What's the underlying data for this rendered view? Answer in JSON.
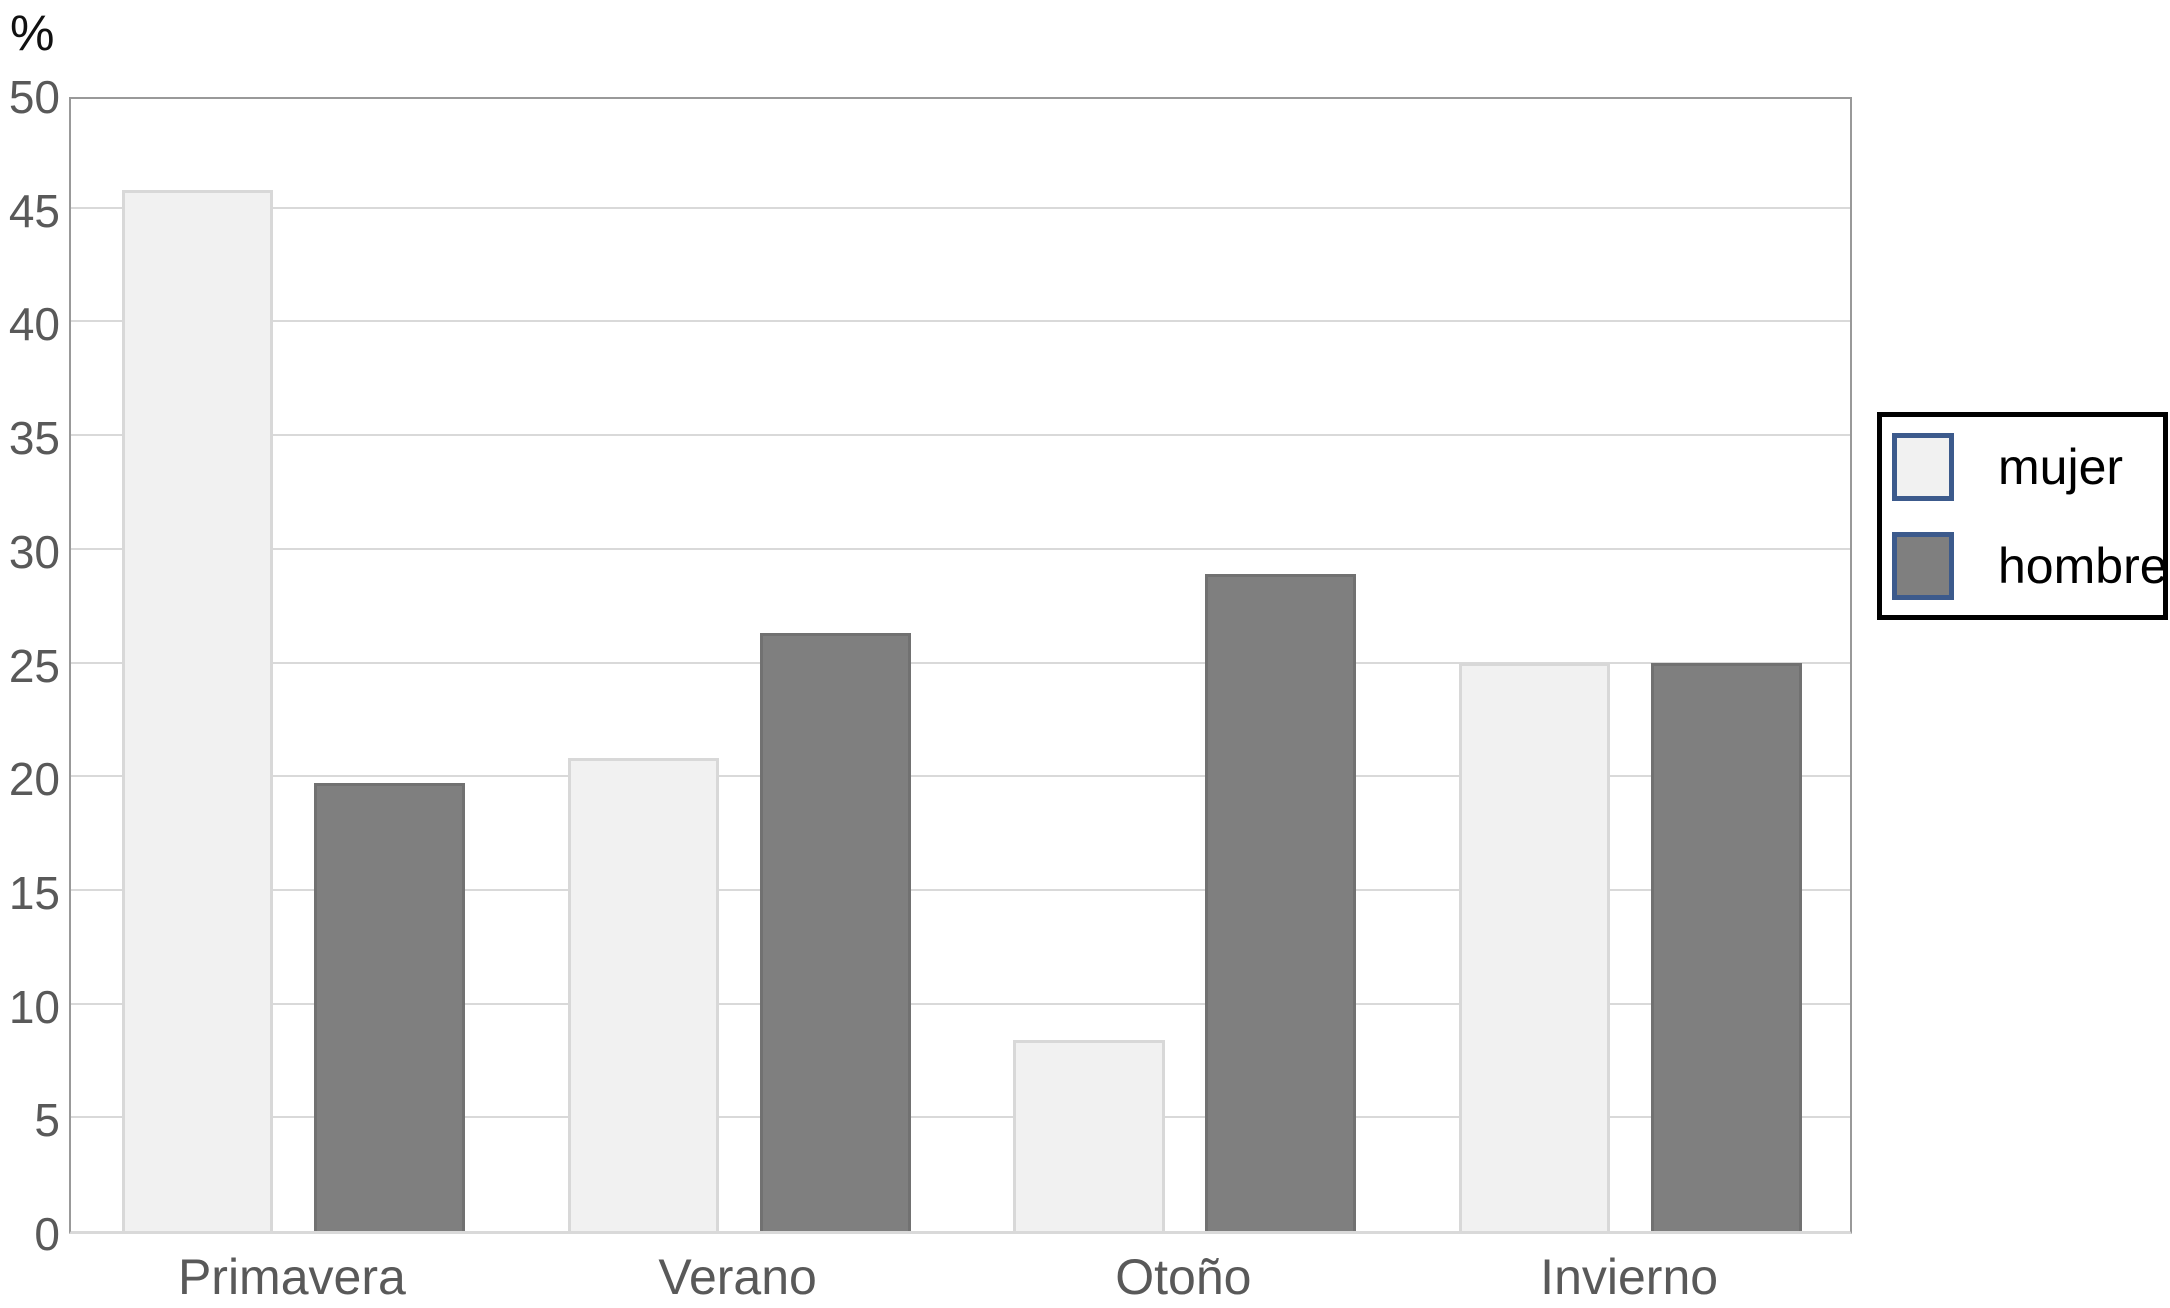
{
  "y_axis_unit_label": "%",
  "chart_data": {
    "type": "bar",
    "title": "",
    "xlabel": "",
    "ylabel": "%",
    "categories": [
      "Primavera",
      "Verano",
      "Otoño",
      "Invierno"
    ],
    "series": [
      {
        "name": "mujer",
        "values": [
          45.8,
          20.8,
          8.4,
          25.0
        ]
      },
      {
        "name": "hombre",
        "values": [
          19.7,
          26.3,
          28.9,
          25.0
        ]
      }
    ],
    "ylim": [
      0,
      50
    ],
    "yticks": [
      0,
      5,
      10,
      15,
      20,
      25,
      30,
      35,
      40,
      45,
      50
    ],
    "grid": "horizontal-only",
    "legend_position": "right-middle",
    "legend_entries": [
      "mujer",
      "hombre"
    ]
  },
  "colors": {
    "mujer_fill": "#f1f1f1",
    "mujer_border": "#d8d8d8",
    "hombre_fill": "#7f7f7f",
    "hombre_border": "#717171",
    "legend_swatch_border": "#3c5a8c",
    "gridline": "#d9d9d9",
    "axis_border": "#999999",
    "tick_label_text": "#595959",
    "category_label_text": "#595959",
    "legend_text": "#000000"
  }
}
